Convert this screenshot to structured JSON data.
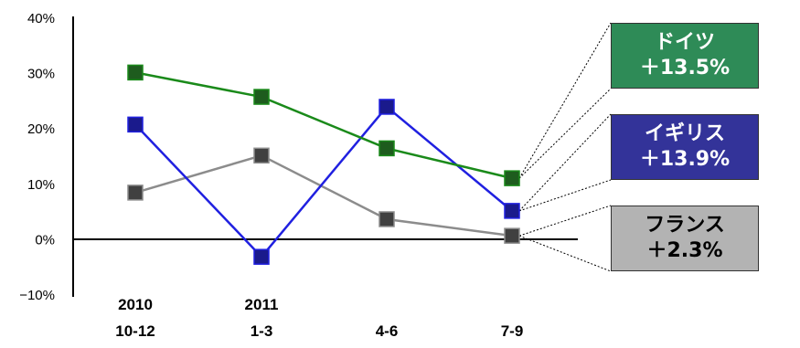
{
  "chart_data": {
    "type": "line",
    "categories": [
      [
        "2010",
        "10-12"
      ],
      [
        "2011",
        "1-3"
      ],
      [
        "",
        "4-6"
      ],
      [
        "",
        "7-9"
      ]
    ],
    "ylim": [
      -10,
      40
    ],
    "yticks": [
      -10,
      0,
      10,
      20,
      30,
      40
    ],
    "ytick_labels": [
      "−10%",
      "0%",
      "10%",
      "20%",
      "30%",
      "40%"
    ],
    "series": [
      {
        "name": "ドイツ",
        "values": [
          30.2,
          25.8,
          16.5,
          11.1
        ],
        "color": "#1a8a1a",
        "marker_color": "#1e5c1e",
        "label": "ドイツ",
        "value_label": "＋13.5%",
        "box_color": "#2e8b57",
        "text_color": "#ffffff"
      },
      {
        "name": "イギリス",
        "values": [
          20.8,
          -3.1,
          24.0,
          5.2
        ],
        "color": "#2020e0",
        "marker_color": "#1a1a8c",
        "label": "イギリス",
        "value_label": "＋13.9%",
        "box_color": "#333399",
        "text_color": "#ffffff"
      },
      {
        "name": "フランス",
        "values": [
          8.5,
          15.2,
          3.7,
          0.7
        ],
        "color": "#8c8c8c",
        "marker_color": "#404040",
        "label": "フランス",
        "value_label": "＋2.3%",
        "box_color": "#b3b3b3",
        "text_color": "#000000"
      }
    ]
  }
}
